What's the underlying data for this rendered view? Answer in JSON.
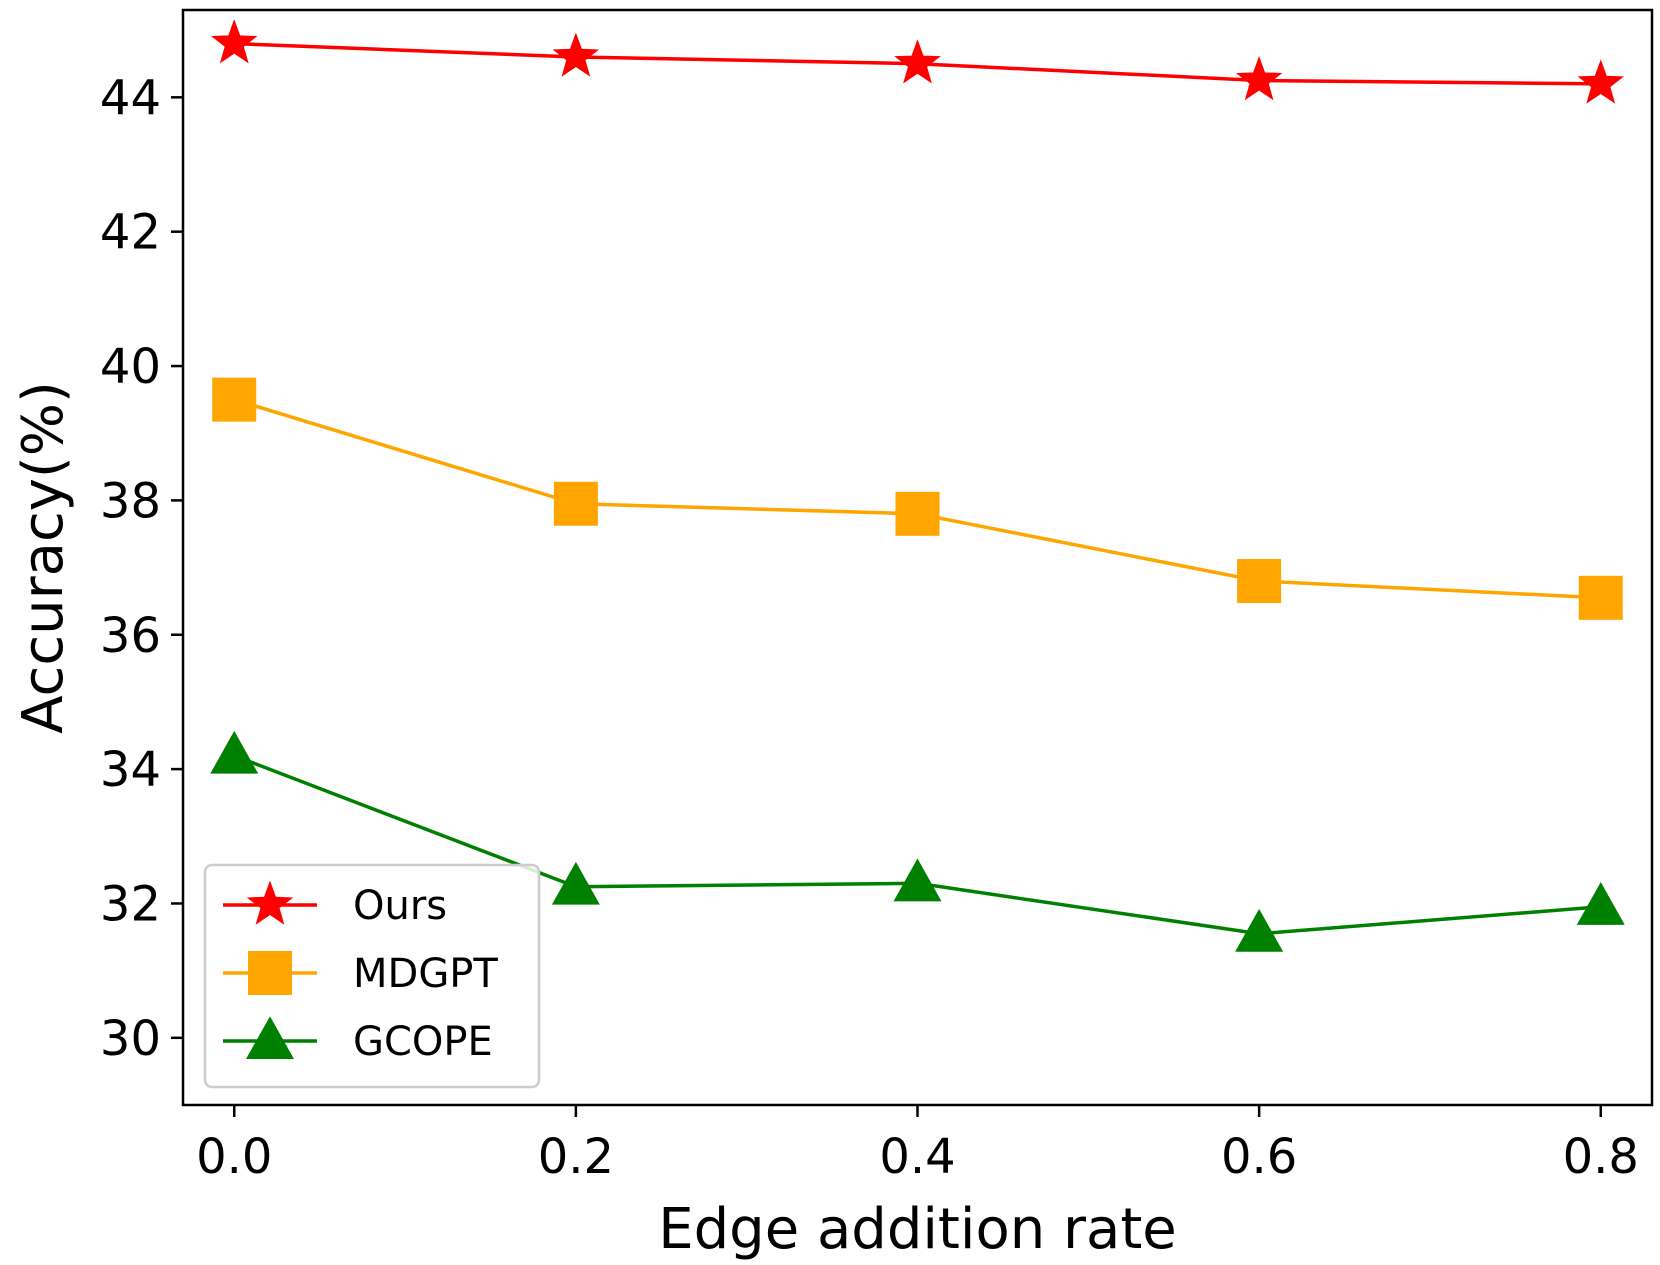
{
  "chart_data": {
    "type": "line",
    "xlabel": "Edge addition rate",
    "ylabel": "Accuracy(%)",
    "x": [
      0.0,
      0.2,
      0.4,
      0.6,
      0.8
    ],
    "x_tick_labels": [
      "0.0",
      "0.2",
      "0.4",
      "0.6",
      "0.8"
    ],
    "y_ticks": [
      30,
      32,
      34,
      36,
      38,
      40,
      42,
      44
    ],
    "y_tick_labels": [
      "30",
      "32",
      "34",
      "36",
      "38",
      "40",
      "42",
      "44"
    ],
    "xlim": [
      -0.03,
      0.83
    ],
    "ylim": [
      29.0,
      45.3
    ],
    "grid": false,
    "legend_position": "lower-left",
    "series": [
      {
        "name": "Ours",
        "color": "#ff0000",
        "marker": "star",
        "values": [
          44.8,
          44.6,
          44.5,
          44.25,
          44.2
        ]
      },
      {
        "name": "MDGPT",
        "color": "#ffa500",
        "marker": "square",
        "values": [
          39.5,
          37.95,
          37.8,
          36.8,
          36.55
        ]
      },
      {
        "name": "GCOPE",
        "color": "#008000",
        "marker": "triangle",
        "values": [
          34.2,
          32.25,
          32.3,
          31.55,
          31.95
        ]
      }
    ]
  }
}
